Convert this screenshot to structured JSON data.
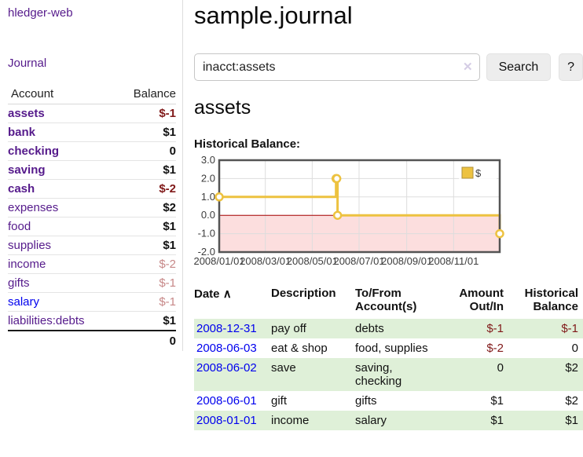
{
  "app": {
    "title": "hledger-web",
    "nav": {
      "journal": "Journal"
    }
  },
  "colors": {
    "link_purple": "#551a8b",
    "link_blue": "#0000ee",
    "negative_red": "#801919",
    "dimmed_red": "#c78888",
    "row_green": "#dff0d8",
    "chart_gold": "#edc240",
    "chart_negative_region": "#fcdede",
    "chart_zero_line": "#aa0000"
  },
  "sidebar": {
    "header": {
      "account": "Account",
      "balance": "Balance"
    },
    "accounts": [
      {
        "name": "assets",
        "balance": "$-1"
      },
      {
        "name": "bank",
        "balance": "$1"
      },
      {
        "name": "checking",
        "balance": "0"
      },
      {
        "name": "saving",
        "balance": "$1"
      },
      {
        "name": "cash",
        "balance": "$-2"
      },
      {
        "name": "expenses",
        "balance": "$2"
      },
      {
        "name": "food",
        "balance": "$1"
      },
      {
        "name": "supplies",
        "balance": "$1"
      },
      {
        "name": "income",
        "balance": "$-2"
      },
      {
        "name": "gifts",
        "balance": "$-1"
      },
      {
        "name": "salary",
        "balance": "$-1"
      },
      {
        "name": "liabilities:debts",
        "balance": "$1"
      }
    ],
    "total": "0"
  },
  "header": {
    "title": "sample.journal"
  },
  "search": {
    "value": "inacct:assets",
    "clear_icon": "✕",
    "button": "Search",
    "help_button": "?"
  },
  "section": {
    "account_heading": "assets",
    "chart_label": "Historical Balance:"
  },
  "chart_data": {
    "type": "line",
    "step": true,
    "title": "Historical Balance",
    "series": [
      {
        "name": "$",
        "color": "#edc240",
        "points": [
          [
            "2008-01-01",
            1
          ],
          [
            "2008-06-01",
            2
          ],
          [
            "2008-06-02",
            2
          ],
          [
            "2008-06-03",
            0
          ],
          [
            "2008-12-31",
            -1
          ]
        ]
      }
    ],
    "x_start": "2008-01-01",
    "x_end": "2008-12-31",
    "x_ticks": [
      "2008/01/01",
      "2008/03/01",
      "2008/05/01",
      "2008/07/01",
      "2008/09/01",
      "2008/11/01"
    ],
    "y_ticks": [
      "3.0",
      "2.0",
      "1.0",
      "0.0",
      "-1.0",
      "-2.0"
    ],
    "ylim": [
      -2,
      3
    ],
    "grid": true,
    "legend": {
      "label": "$",
      "position": "top-right"
    },
    "negative_region_color": "#fcdede",
    "zero_line_color": "#aa0000",
    "grid_color": "#dddddd",
    "border_color": "#545454"
  },
  "transactions": {
    "headers": {
      "date": "Date",
      "sort_icon": "∧",
      "description": "Description",
      "account": "To/From Account(s)",
      "amount": "Amount Out/In",
      "balance": "Historical Balance"
    },
    "rows": [
      {
        "date": "2008-12-31",
        "description": "pay off",
        "account": "debts",
        "amount": "$-1",
        "balance": "$-1"
      },
      {
        "date": "2008-06-03",
        "description": "eat & shop",
        "account": "food, supplies",
        "amount": "$-2",
        "balance": "0"
      },
      {
        "date": "2008-06-02",
        "description": "save",
        "account": "saving, checking",
        "amount": "0",
        "balance": "$2"
      },
      {
        "date": "2008-06-01",
        "description": "gift",
        "account": "gifts",
        "amount": "$1",
        "balance": "$2"
      },
      {
        "date": "2008-01-01",
        "description": "income",
        "account": "salary",
        "amount": "$1",
        "balance": "$1"
      }
    ]
  }
}
